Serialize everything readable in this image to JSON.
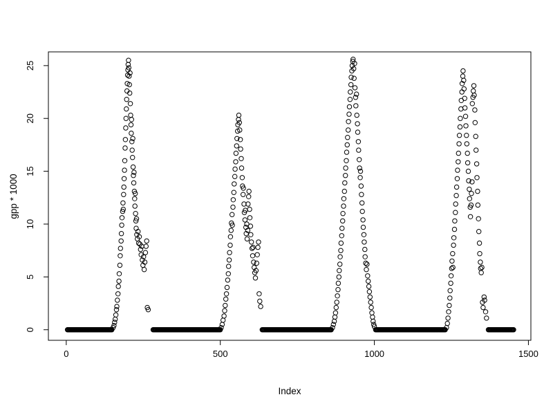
{
  "page": {
    "background": "#ffffff"
  },
  "chart_data": {
    "type": "scatter",
    "title": "",
    "xlabel": "Index",
    "ylabel": "gpp * 1000",
    "point_color": "#000000",
    "axis_color": "#000000",
    "marker": "open-circle",
    "grid": false,
    "xlim": [
      -58,
      1508
    ],
    "ylim": [
      -1.0,
      26.3
    ],
    "x_ticks": [
      0,
      500,
      1000,
      1500
    ],
    "y_ticks": [
      0,
      5,
      10,
      15,
      20,
      25
    ],
    "baseline_value": 0,
    "baseline_step": 2,
    "baseline_runs": [
      [
        4,
        148
      ],
      [
        282,
        500
      ],
      [
        636,
        860
      ],
      [
        1004,
        1230
      ],
      [
        1370,
        1452
      ]
    ],
    "points": [
      [
        152,
        0.2
      ],
      [
        155,
        0.4
      ],
      [
        157,
        0.7
      ],
      [
        159,
        1.0
      ],
      [
        161,
        1.4
      ],
      [
        163,
        1.9
      ],
      [
        164,
        2.2
      ],
      [
        166,
        2.8
      ],
      [
        168,
        3.4
      ],
      [
        169,
        4.1
      ],
      [
        171,
        4.6
      ],
      [
        172,
        5.3
      ],
      [
        174,
        6.1
      ],
      [
        175,
        7.0
      ],
      [
        176,
        7.7
      ],
      [
        178,
        8.4
      ],
      [
        179,
        9.1
      ],
      [
        180,
        9.9
      ],
      [
        181,
        10.6
      ],
      [
        183,
        11.2
      ],
      [
        184,
        12.0
      ],
      [
        185,
        11.4
      ],
      [
        186,
        12.8
      ],
      [
        187,
        13.5
      ],
      [
        188,
        14.3
      ],
      [
        189,
        15.1
      ],
      [
        190,
        16.0
      ],
      [
        191,
        17.2
      ],
      [
        192,
        18.0
      ],
      [
        193,
        19.1
      ],
      [
        194,
        20.0
      ],
      [
        195,
        20.9
      ],
      [
        196,
        21.8
      ],
      [
        197,
        22.6
      ],
      [
        198,
        23.3
      ],
      [
        199,
        24.1
      ],
      [
        200,
        24.6
      ],
      [
        201,
        25.1
      ],
      [
        202,
        25.5
      ],
      [
        203,
        24.8
      ],
      [
        204,
        24.0
      ],
      [
        205,
        23.2
      ],
      [
        206,
        22.4
      ],
      [
        207,
        24.3
      ],
      [
        208,
        21.4
      ],
      [
        209,
        20.3
      ],
      [
        210,
        19.4
      ],
      [
        211,
        18.6
      ],
      [
        212,
        19.9
      ],
      [
        213,
        17.8
      ],
      [
        214,
        17.0
      ],
      [
        215,
        16.3
      ],
      [
        216,
        18.1
      ],
      [
        217,
        15.4
      ],
      [
        218,
        14.6
      ],
      [
        219,
        13.9
      ],
      [
        220,
        14.9
      ],
      [
        221,
        13.1
      ],
      [
        222,
        12.4
      ],
      [
        223,
        11.7
      ],
      [
        224,
        12.9
      ],
      [
        225,
        11.0
      ],
      [
        226,
        10.3
      ],
      [
        227,
        9.6
      ],
      [
        228,
        10.5
      ],
      [
        229,
        9.0
      ],
      [
        231,
        8.6
      ],
      [
        233,
        9.3
      ],
      [
        235,
        8.2
      ],
      [
        237,
        8.8
      ],
      [
        239,
        8.1
      ],
      [
        241,
        7.6
      ],
      [
        243,
        7.1
      ],
      [
        245,
        7.9
      ],
      [
        247,
        6.6
      ],
      [
        249,
        6.1
      ],
      [
        251,
        6.9
      ],
      [
        253,
        5.7
      ],
      [
        255,
        6.4
      ],
      [
        257,
        7.3
      ],
      [
        259,
        7.9
      ],
      [
        261,
        8.4
      ],
      [
        263,
        2.1
      ],
      [
        266,
        1.9
      ],
      [
        503,
        0.2
      ],
      [
        506,
        0.5
      ],
      [
        509,
        0.9
      ],
      [
        512,
        1.3
      ],
      [
        514,
        1.8
      ],
      [
        516,
        2.3
      ],
      [
        518,
        2.9
      ],
      [
        520,
        3.4
      ],
      [
        522,
        4.0
      ],
      [
        524,
        4.7
      ],
      [
        526,
        5.3
      ],
      [
        527,
        6.0
      ],
      [
        529,
        6.6
      ],
      [
        530,
        7.3
      ],
      [
        532,
        8.0
      ],
      [
        533,
        8.8
      ],
      [
        535,
        9.4
      ],
      [
        536,
        10.1
      ],
      [
        538,
        10.9
      ],
      [
        539,
        9.9
      ],
      [
        541,
        11.6
      ],
      [
        542,
        12.3
      ],
      [
        544,
        13.0
      ],
      [
        545,
        13.8
      ],
      [
        547,
        14.5
      ],
      [
        548,
        15.2
      ],
      [
        550,
        15.9
      ],
      [
        551,
        16.7
      ],
      [
        553,
        17.4
      ],
      [
        554,
        18.1
      ],
      [
        556,
        18.8
      ],
      [
        557,
        19.4
      ],
      [
        559,
        19.9
      ],
      [
        560,
        20.3
      ],
      [
        562,
        19.6
      ],
      [
        563,
        18.9
      ],
      [
        565,
        18.0
      ],
      [
        566,
        17.1
      ],
      [
        568,
        16.2
      ],
      [
        569,
        15.3
      ],
      [
        571,
        14.4
      ],
      [
        572,
        13.6
      ],
      [
        574,
        12.8
      ],
      [
        575,
        13.4
      ],
      [
        577,
        11.9
      ],
      [
        578,
        11.1
      ],
      [
        580,
        10.4
      ],
      [
        581,
        11.3
      ],
      [
        583,
        9.7
      ],
      [
        584,
        9.1
      ],
      [
        586,
        10.0
      ],
      [
        587,
        8.6
      ],
      [
        589,
        9.4
      ],
      [
        590,
        11.9
      ],
      [
        592,
        12.6
      ],
      [
        593,
        13.1
      ],
      [
        595,
        11.4
      ],
      [
        596,
        10.6
      ],
      [
        598,
        9.8
      ],
      [
        599,
        9.0
      ],
      [
        601,
        8.3
      ],
      [
        603,
        7.7
      ],
      [
        605,
        7.0
      ],
      [
        606,
        7.8
      ],
      [
        608,
        6.4
      ],
      [
        610,
        5.9
      ],
      [
        612,
        5.4
      ],
      [
        614,
        4.9
      ],
      [
        616,
        5.6
      ],
      [
        618,
        6.3
      ],
      [
        620,
        7.1
      ],
      [
        622,
        7.8
      ],
      [
        624,
        8.3
      ],
      [
        626,
        3.4
      ],
      [
        628,
        2.7
      ],
      [
        631,
        2.2
      ],
      [
        864,
        0.2
      ],
      [
        867,
        0.5
      ],
      [
        870,
        0.8
      ],
      [
        872,
        1.2
      ],
      [
        874,
        1.6
      ],
      [
        876,
        2.1
      ],
      [
        878,
        2.6
      ],
      [
        880,
        3.2
      ],
      [
        882,
        3.8
      ],
      [
        883,
        4.4
      ],
      [
        885,
        5.0
      ],
      [
        886,
        5.6
      ],
      [
        888,
        6.2
      ],
      [
        889,
        6.9
      ],
      [
        891,
        7.5
      ],
      [
        892,
        8.2
      ],
      [
        894,
        8.9
      ],
      [
        895,
        9.6
      ],
      [
        897,
        10.3
      ],
      [
        898,
        11.0
      ],
      [
        900,
        11.7
      ],
      [
        901,
        12.4
      ],
      [
        903,
        13.1
      ],
      [
        904,
        13.9
      ],
      [
        906,
        14.6
      ],
      [
        907,
        15.3
      ],
      [
        909,
        16.0
      ],
      [
        910,
        16.8
      ],
      [
        912,
        17.5
      ],
      [
        913,
        18.2
      ],
      [
        915,
        18.9
      ],
      [
        916,
        19.7
      ],
      [
        918,
        20.4
      ],
      [
        919,
        21.1
      ],
      [
        921,
        21.8
      ],
      [
        922,
        22.5
      ],
      [
        924,
        23.2
      ],
      [
        925,
        23.9
      ],
      [
        927,
        24.5
      ],
      [
        928,
        25.0
      ],
      [
        930,
        25.4
      ],
      [
        931,
        25.6
      ],
      [
        933,
        24.7
      ],
      [
        934,
        23.8
      ],
      [
        936,
        25.2
      ],
      [
        937,
        22.9
      ],
      [
        939,
        22.0
      ],
      [
        940,
        21.2
      ],
      [
        942,
        22.3
      ],
      [
        943,
        20.3
      ],
      [
        945,
        19.5
      ],
      [
        946,
        18.7
      ],
      [
        948,
        17.8
      ],
      [
        949,
        17.0
      ],
      [
        951,
        16.1
      ],
      [
        952,
        15.3
      ],
      [
        954,
        14.4
      ],
      [
        955,
        15.0
      ],
      [
        957,
        13.6
      ],
      [
        958,
        12.8
      ],
      [
        960,
        12.0
      ],
      [
        961,
        11.2
      ],
      [
        963,
        10.4
      ],
      [
        964,
        9.7
      ],
      [
        966,
        9.0
      ],
      [
        967,
        8.3
      ],
      [
        969,
        7.6
      ],
      [
        970,
        6.9
      ],
      [
        972,
        6.3
      ],
      [
        974,
        5.7
      ],
      [
        976,
        6.2
      ],
      [
        978,
        5.1
      ],
      [
        980,
        4.6
      ],
      [
        982,
        4.1
      ],
      [
        984,
        3.6
      ],
      [
        986,
        3.1
      ],
      [
        988,
        2.6
      ],
      [
        990,
        2.1
      ],
      [
        992,
        1.6
      ],
      [
        994,
        1.2
      ],
      [
        996,
        0.8
      ],
      [
        998,
        0.5
      ],
      [
        1000,
        0.3
      ],
      [
        1234,
        0.2
      ],
      [
        1237,
        0.6
      ],
      [
        1239,
        1.1
      ],
      [
        1241,
        1.7
      ],
      [
        1243,
        2.3
      ],
      [
        1245,
        3.0
      ],
      [
        1246,
        3.7
      ],
      [
        1248,
        4.4
      ],
      [
        1249,
        5.1
      ],
      [
        1251,
        5.8
      ],
      [
        1252,
        6.5
      ],
      [
        1254,
        7.2
      ],
      [
        1255,
        5.9
      ],
      [
        1257,
        8.0
      ],
      [
        1258,
        8.7
      ],
      [
        1260,
        9.5
      ],
      [
        1261,
        10.3
      ],
      [
        1263,
        11.1
      ],
      [
        1264,
        11.9
      ],
      [
        1266,
        12.7
      ],
      [
        1267,
        13.5
      ],
      [
        1269,
        14.3
      ],
      [
        1270,
        15.1
      ],
      [
        1272,
        15.9
      ],
      [
        1273,
        16.7
      ],
      [
        1275,
        17.6
      ],
      [
        1276,
        18.4
      ],
      [
        1278,
        19.2
      ],
      [
        1279,
        20.0
      ],
      [
        1281,
        20.9
      ],
      [
        1282,
        21.7
      ],
      [
        1284,
        22.5
      ],
      [
        1285,
        23.3
      ],
      [
        1287,
        24.0
      ],
      [
        1288,
        24.5
      ],
      [
        1290,
        23.6
      ],
      [
        1291,
        22.8
      ],
      [
        1293,
        21.9
      ],
      [
        1294,
        21.0
      ],
      [
        1296,
        20.2
      ],
      [
        1297,
        19.3
      ],
      [
        1299,
        18.4
      ],
      [
        1300,
        17.6
      ],
      [
        1302,
        16.7
      ],
      [
        1303,
        15.8
      ],
      [
        1305,
        15.0
      ],
      [
        1306,
        14.1
      ],
      [
        1308,
        13.3
      ],
      [
        1309,
        12.4
      ],
      [
        1311,
        11.6
      ],
      [
        1312,
        10.7
      ],
      [
        1314,
        11.8
      ],
      [
        1315,
        12.9
      ],
      [
        1317,
        14.0
      ],
      [
        1318,
        21.4
      ],
      [
        1320,
        22.0
      ],
      [
        1321,
        22.6
      ],
      [
        1323,
        23.1
      ],
      [
        1324,
        22.2
      ],
      [
        1326,
        20.8
      ],
      [
        1327,
        19.6
      ],
      [
        1329,
        18.3
      ],
      [
        1330,
        17.0
      ],
      [
        1332,
        15.7
      ],
      [
        1333,
        14.4
      ],
      [
        1335,
        13.1
      ],
      [
        1336,
        11.8
      ],
      [
        1338,
        10.5
      ],
      [
        1339,
        9.3
      ],
      [
        1341,
        8.2
      ],
      [
        1342,
        7.2
      ],
      [
        1344,
        6.4
      ],
      [
        1345,
        5.8
      ],
      [
        1347,
        5.4
      ],
      [
        1349,
        5.9
      ],
      [
        1351,
        2.6
      ],
      [
        1353,
        2.1
      ],
      [
        1356,
        3.1
      ],
      [
        1358,
        2.8
      ],
      [
        1361,
        1.7
      ],
      [
        1364,
        1.1
      ]
    ]
  }
}
